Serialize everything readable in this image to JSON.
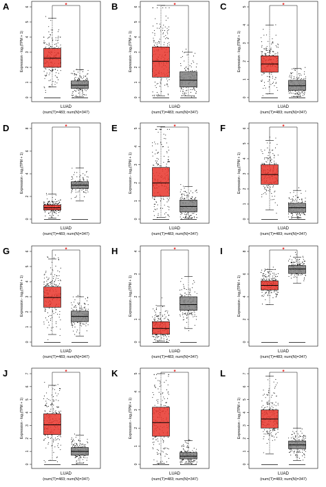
{
  "colors": {
    "tumor_box": "#e8342a",
    "normal_box": "#7f7f7f",
    "points": "#000000",
    "significance": "#e8231f"
  },
  "common": {
    "ylabel": "Expression - log₂(TPM + 1)",
    "xlabel": "LUAD",
    "xsub": "(num(T)=483; num(N)=347)",
    "significance_mark": "*"
  },
  "chart_data": [
    {
      "panel": "A",
      "type": "box",
      "ylim": [
        0,
        6
      ],
      "yticks": [
        0,
        1,
        2,
        3,
        4,
        5,
        6
      ],
      "series": [
        {
          "name": "T",
          "n": 483,
          "min": 0.7,
          "q1": 2.0,
          "median": 2.6,
          "q3": 3.25,
          "max": 5.25
        },
        {
          "name": "N",
          "n": 347,
          "min": 0.05,
          "q1": 0.6,
          "median": 0.82,
          "q3": 1.1,
          "max": 1.85
        }
      ]
    },
    {
      "panel": "B",
      "type": "box",
      "ylim": [
        0,
        6
      ],
      "yticks": [
        0,
        1,
        2,
        3,
        4,
        5,
        6
      ],
      "series": [
        {
          "name": "T",
          "n": 483,
          "min": 0.1,
          "q1": 1.35,
          "median": 2.4,
          "q3": 3.35,
          "max": 6.1
        },
        {
          "name": "N",
          "n": 347,
          "min": 0.1,
          "q1": 0.7,
          "median": 1.15,
          "q3": 1.7,
          "max": 3.0
        }
      ]
    },
    {
      "panel": "C",
      "type": "box",
      "ylim": [
        0,
        5
      ],
      "yticks": [
        0,
        1,
        2,
        3,
        4,
        5
      ],
      "series": [
        {
          "name": "T",
          "n": 483,
          "min": 0.2,
          "q1": 1.4,
          "median": 1.85,
          "q3": 2.3,
          "max": 4.0
        },
        {
          "name": "N",
          "n": 347,
          "min": 0.05,
          "q1": 0.4,
          "median": 0.65,
          "q3": 0.95,
          "max": 1.6
        }
      ]
    },
    {
      "panel": "D",
      "type": "box",
      "ylim": [
        0,
        8
      ],
      "yticks": [
        0,
        2,
        4,
        6,
        8
      ],
      "series": [
        {
          "name": "T",
          "n": 483,
          "min": 0.1,
          "q1": 0.8,
          "median": 1.0,
          "q3": 1.25,
          "max": 2.2
        },
        {
          "name": "N",
          "n": 347,
          "min": 1.6,
          "q1": 2.7,
          "median": 3.0,
          "q3": 3.3,
          "max": 4.5
        }
      ]
    },
    {
      "panel": "E",
      "type": "box",
      "ylim": [
        0,
        5
      ],
      "yticks": [
        0,
        1,
        2,
        3,
        4,
        5
      ],
      "series": [
        {
          "name": "T",
          "n": 483,
          "min": 0.1,
          "q1": 1.25,
          "median": 2.0,
          "q3": 2.85,
          "max": 5.1
        },
        {
          "name": "N",
          "n": 347,
          "min": 0.05,
          "q1": 0.4,
          "median": 0.7,
          "q3": 1.05,
          "max": 1.8
        }
      ]
    },
    {
      "panel": "F",
      "type": "box",
      "ylim": [
        0,
        6
      ],
      "yticks": [
        0,
        1,
        2,
        3,
        4,
        5,
        6
      ],
      "series": [
        {
          "name": "T",
          "n": 483,
          "min": 0.6,
          "q1": 2.3,
          "median": 2.95,
          "q3": 3.6,
          "max": 5.2
        },
        {
          "name": "N",
          "n": 347,
          "min": 0.1,
          "q1": 0.45,
          "median": 0.75,
          "q3": 1.05,
          "max": 1.9
        }
      ]
    },
    {
      "panel": "G",
      "type": "box",
      "ylim": [
        0,
        6
      ],
      "yticks": [
        0,
        1,
        2,
        3,
        4,
        5,
        6
      ],
      "series": [
        {
          "name": "T",
          "n": 483,
          "min": 0.5,
          "q1": 2.3,
          "median": 2.95,
          "q3": 3.65,
          "max": 5.5
        },
        {
          "name": "N",
          "n": 347,
          "min": 0.4,
          "q1": 1.35,
          "median": 1.7,
          "q3": 2.05,
          "max": 3.0
        }
      ]
    },
    {
      "panel": "H",
      "type": "box",
      "ylim": [
        0,
        4
      ],
      "yticks": [
        0,
        1,
        2,
        3,
        4
      ],
      "series": [
        {
          "name": "T",
          "n": 483,
          "min": 0.05,
          "q1": 0.35,
          "median": 0.6,
          "q3": 0.9,
          "max": 1.6
        },
        {
          "name": "N",
          "n": 347,
          "min": 0.6,
          "q1": 1.4,
          "median": 1.65,
          "q3": 2.0,
          "max": 2.9
        }
      ]
    },
    {
      "panel": "I",
      "type": "box",
      "ylim": [
        0,
        8
      ],
      "yticks": [
        0,
        2,
        4,
        6,
        8
      ],
      "series": [
        {
          "name": "T",
          "n": 483,
          "min": 3.3,
          "q1": 4.6,
          "median": 5.0,
          "q3": 5.4,
          "max": 6.4
        },
        {
          "name": "N",
          "n": 347,
          "min": 5.2,
          "q1": 6.05,
          "median": 6.45,
          "q3": 6.75,
          "max": 7.5
        }
      ]
    },
    {
      "panel": "J",
      "type": "box",
      "ylim": [
        0,
        7
      ],
      "yticks": [
        0,
        1,
        2,
        3,
        4,
        5,
        6,
        7
      ],
      "series": [
        {
          "name": "T",
          "n": 483,
          "min": 0.3,
          "q1": 2.3,
          "median": 3.05,
          "q3": 3.9,
          "max": 6.1
        },
        {
          "name": "N",
          "n": 347,
          "min": 0.1,
          "q1": 0.7,
          "median": 1.0,
          "q3": 1.3,
          "max": 2.25
        }
      ]
    },
    {
      "panel": "K",
      "type": "box",
      "ylim": [
        0,
        5
      ],
      "yticks": [
        0,
        1,
        2,
        3,
        4,
        5
      ],
      "series": [
        {
          "name": "T",
          "n": 483,
          "min": 0.05,
          "q1": 1.55,
          "median": 2.3,
          "q3": 3.15,
          "max": 5.0
        },
        {
          "name": "N",
          "n": 347,
          "min": 0.05,
          "q1": 0.3,
          "median": 0.45,
          "q3": 0.65,
          "max": 1.3
        }
      ]
    },
    {
      "panel": "L",
      "type": "box",
      "ylim": [
        0,
        7
      ],
      "yticks": [
        0,
        1,
        2,
        3,
        4,
        5,
        6,
        7
      ],
      "series": [
        {
          "name": "T",
          "n": 483,
          "min": 0.8,
          "q1": 2.8,
          "median": 3.5,
          "q3": 4.2,
          "max": 6.8
        },
        {
          "name": "N",
          "n": 347,
          "min": 0.3,
          "q1": 1.2,
          "median": 1.5,
          "q3": 1.8,
          "max": 2.8
        }
      ]
    }
  ]
}
